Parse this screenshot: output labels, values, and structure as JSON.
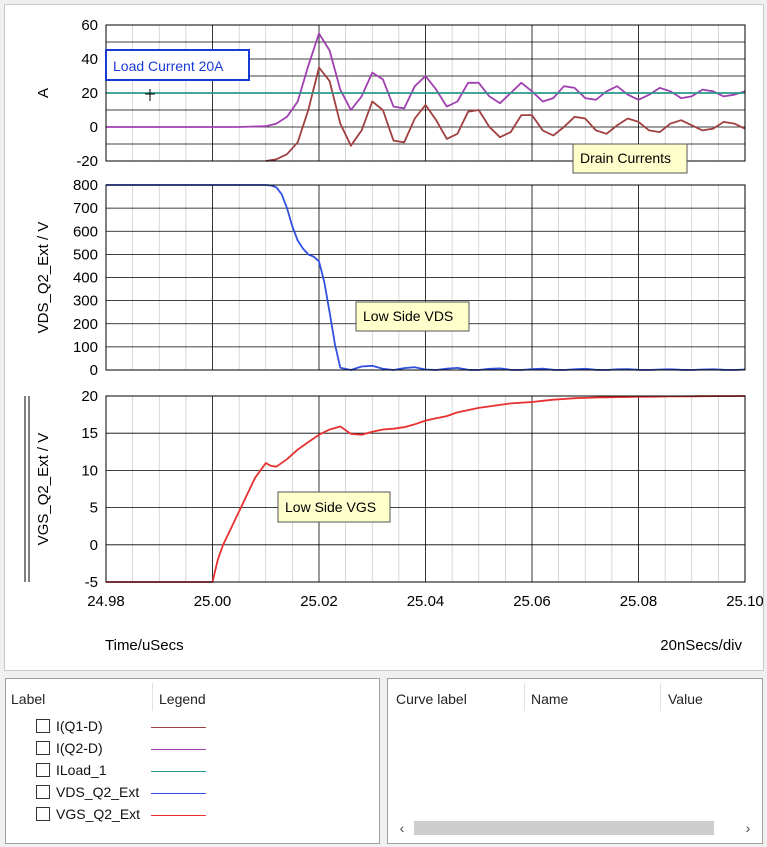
{
  "chart_data": [
    {
      "type": "line",
      "ylabel": "A",
      "ylim": [
        -20,
        60
      ],
      "yticks": [
        "60",
        "40",
        "20",
        "0",
        "-20"
      ],
      "grid": true,
      "series": [
        {
          "name": "I(Q1-D)",
          "color": "#a04040",
          "x": [
            25.01,
            25.012,
            25.014,
            25.016,
            25.018,
            25.02,
            25.022,
            25.024,
            25.026,
            25.028,
            25.03,
            25.032,
            25.034,
            25.036,
            25.038,
            25.04,
            25.042,
            25.044,
            25.046,
            25.048,
            25.05,
            25.052,
            25.054,
            25.056,
            25.058,
            25.06,
            25.062,
            25.064,
            25.066,
            25.068,
            25.07,
            25.072,
            25.074,
            25.076,
            25.078,
            25.08,
            25.082,
            25.084,
            25.086,
            25.088,
            25.09,
            25.092,
            25.094,
            25.096,
            25.098,
            25.1
          ],
          "values": [
            -20,
            -19,
            -16,
            -9,
            10,
            35,
            27,
            2,
            -11,
            -2,
            15,
            10,
            -8,
            -9,
            5,
            13,
            4,
            -7,
            -4,
            9,
            10,
            0,
            -6,
            -3,
            7,
            7,
            -2,
            -5,
            0,
            6,
            5,
            -2,
            -4,
            1,
            5,
            3,
            -2,
            -3,
            2,
            4,
            1,
            -2,
            -1,
            3,
            2,
            -1
          ]
        },
        {
          "name": "I(Q2-D)",
          "color": "#a040b0",
          "x": [
            24.98,
            25.0,
            25.005,
            25.01,
            25.012,
            25.014,
            25.016,
            25.018,
            25.02,
            25.022,
            25.024,
            25.026,
            25.028,
            25.03,
            25.032,
            25.034,
            25.036,
            25.038,
            25.04,
            25.042,
            25.044,
            25.046,
            25.048,
            25.05,
            25.052,
            25.054,
            25.056,
            25.058,
            25.06,
            25.062,
            25.064,
            25.066,
            25.068,
            25.07,
            25.072,
            25.074,
            25.076,
            25.078,
            25.08,
            25.082,
            25.084,
            25.086,
            25.088,
            25.09,
            25.092,
            25.094,
            25.096,
            25.098,
            25.1
          ],
          "values": [
            0,
            0,
            0,
            0.5,
            2,
            6,
            15,
            36,
            55,
            45,
            22,
            10,
            18,
            32,
            28,
            12,
            11,
            24,
            30,
            22,
            12,
            15,
            26,
            26,
            18,
            14,
            20,
            26,
            21,
            15,
            17,
            24,
            23,
            17,
            16,
            21,
            24,
            19,
            16,
            19,
            23,
            21,
            17,
            18,
            22,
            21,
            18,
            19,
            21
          ]
        },
        {
          "name": "ILoad_1",
          "color": "#2a9a8a",
          "x": [
            24.98,
            25.1
          ],
          "values": [
            20,
            20
          ]
        }
      ],
      "annotations": [
        {
          "text": "Load Current 20A",
          "style": "blue-box"
        },
        {
          "text": "Drain Currents",
          "style": "note"
        }
      ]
    },
    {
      "type": "line",
      "ylabel": "VDS_Q2_Ext / V",
      "ylim": [
        0,
        800
      ],
      "yticks": [
        "800",
        "700",
        "600",
        "500",
        "400",
        "300",
        "200",
        "100",
        "0"
      ],
      "grid": true,
      "series": [
        {
          "name": "VDS_Q2_Ext",
          "color": "#3050e0",
          "x": [
            24.98,
            25.01,
            25.011,
            25.012,
            25.013,
            25.014,
            25.015,
            25.016,
            25.017,
            25.018,
            25.019,
            25.02,
            25.021,
            25.022,
            25.023,
            25.024,
            25.026,
            25.028,
            25.03,
            25.032,
            25.034,
            25.036,
            25.038,
            25.04,
            25.042,
            25.044,
            25.046,
            25.048,
            25.05,
            25.052,
            25.054,
            25.056,
            25.058,
            25.06,
            25.062,
            25.064,
            25.066,
            25.068,
            25.07,
            25.072,
            25.074,
            25.076,
            25.078,
            25.08,
            25.082,
            25.084,
            25.086,
            25.088,
            25.09,
            25.092,
            25.094,
            25.096,
            25.098,
            25.1
          ],
          "values": [
            800,
            800,
            798,
            790,
            760,
            700,
            620,
            560,
            525,
            500,
            490,
            470,
            380,
            250,
            110,
            10,
            -5,
            15,
            18,
            5,
            -5,
            8,
            12,
            2,
            -4,
            6,
            9,
            1,
            -3,
            5,
            7,
            1,
            -2,
            4,
            6,
            1,
            -2,
            3,
            5,
            1,
            -1,
            3,
            4,
            1,
            -1,
            2,
            3,
            1,
            0,
            2,
            3,
            1,
            0,
            2
          ]
        }
      ],
      "annotations": [
        {
          "text": "Low Side VDS",
          "style": "note"
        }
      ]
    },
    {
      "type": "line",
      "ylabel": "VGS_Q2_Ext / V",
      "ylim": [
        -5,
        20
      ],
      "yticks": [
        "20",
        "15",
        "10",
        "5",
        "0",
        "-5"
      ],
      "xlabel": "Time/uSecs",
      "xticks": [
        "24.98",
        "25.00",
        "25.02",
        "25.04",
        "25.06",
        "25.08",
        "25.10"
      ],
      "xscale_label": "20nSecs/div",
      "grid": true,
      "series": [
        {
          "name": "VGS_Q2_Ext",
          "color": "#e83030",
          "x": [
            24.98,
            25.0,
            25.001,
            25.002,
            25.004,
            25.006,
            25.008,
            25.01,
            25.011,
            25.012,
            25.014,
            25.016,
            25.018,
            25.02,
            25.022,
            25.024,
            25.026,
            25.028,
            25.03,
            25.032,
            25.034,
            25.036,
            25.038,
            25.04,
            25.042,
            25.044,
            25.046,
            25.048,
            25.05,
            25.052,
            25.054,
            25.056,
            25.058,
            25.06,
            25.062,
            25.064,
            25.066,
            25.068,
            25.07,
            25.072,
            25.074,
            25.076,
            25.078,
            25.08,
            25.082,
            25.084,
            25.086,
            25.088,
            25.09,
            25.092,
            25.094,
            25.096,
            25.098,
            25.1
          ],
          "values": [
            -5,
            -5,
            -2,
            0,
            3,
            6,
            9,
            11,
            10.6,
            10.5,
            11.5,
            12.8,
            13.8,
            14.8,
            15.5,
            15.9,
            14.9,
            14.8,
            15.2,
            15.5,
            15.6,
            15.8,
            16.2,
            16.7,
            17.0,
            17.3,
            17.8,
            18.1,
            18.4,
            18.6,
            18.8,
            19.0,
            19.1,
            19.2,
            19.35,
            19.5,
            19.6,
            19.7,
            19.75,
            19.8,
            19.82,
            19.85,
            19.87,
            19.9,
            19.91,
            19.92,
            19.94,
            19.95,
            19.96,
            19.97,
            19.98,
            19.98,
            19.99,
            20.0
          ]
        }
      ],
      "annotations": [
        {
          "text": "Low Side VGS",
          "style": "note"
        }
      ]
    }
  ],
  "legend_panel": {
    "col_label": "Label",
    "col_legend": "Legend",
    "items": [
      {
        "label": "I(Q1-D)",
        "color": "#a04040"
      },
      {
        "label": "I(Q2-D)",
        "color": "#a040b0"
      },
      {
        "label": "ILoad_1",
        "color": "#2a9a8a"
      },
      {
        "label": "VDS_Q2_Ext",
        "color": "#3050e0"
      },
      {
        "label": "VGS_Q2_Ext",
        "color": "#e83030"
      }
    ]
  },
  "cursor_panel": {
    "col_curve_label": "Curve label",
    "col_name": "Name",
    "col_value": "Value",
    "scroll_left": "‹",
    "scroll_right": "›"
  }
}
